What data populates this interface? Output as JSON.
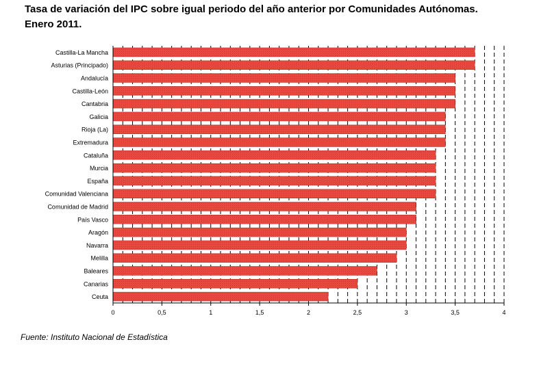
{
  "title": "Tasa de variación del IPC sobre igual periodo del año anterior por Comunidades Autónomas.",
  "subtitle": "Enero 2011.",
  "source": "Fuente: Instituto Nacional de Estadística",
  "colors": {
    "bar": "#e8483e",
    "bar_stroke": "#b02a22",
    "grid": "#000000"
  },
  "chart_data": {
    "type": "bar",
    "orientation": "horizontal",
    "categories": [
      "Castilla-La Mancha",
      "Asturias (Principado)",
      "Andalucía",
      "Castilla-León",
      "Cantabria",
      "Galicia",
      "Rioja (La)",
      "Extremadura",
      "Cataluña",
      "Murcia",
      "España",
      "Comunidad Valenciana",
      "Comunidad de Madrid",
      "País Vasco",
      "Aragón",
      "Navarra",
      "Melilla",
      "Baleares",
      "Canarias",
      "Ceuta"
    ],
    "values": [
      3.7,
      3.7,
      3.5,
      3.5,
      3.5,
      3.4,
      3.4,
      3.4,
      3.3,
      3.3,
      3.3,
      3.3,
      3.1,
      3.1,
      3.0,
      3.0,
      2.9,
      2.7,
      2.5,
      2.2
    ],
    "xlim": [
      0,
      4
    ],
    "ticks": [
      "0",
      "0,5",
      "1",
      "1,5",
      "2",
      "2,5",
      "3",
      "3,5",
      "4"
    ],
    "tick_values": [
      0,
      0.5,
      1,
      1.5,
      2,
      2.5,
      3,
      3.5,
      4
    ],
    "grid_values": [
      0.1,
      0.2,
      0.3,
      0.4,
      0.5,
      0.6,
      0.7,
      0.8,
      0.9,
      1,
      1.1,
      1.2,
      1.3,
      1.4,
      1.5,
      1.6,
      1.7,
      1.8,
      1.9,
      2,
      2.1,
      2.2,
      2.3,
      2.4,
      2.5,
      2.6,
      2.7,
      2.8,
      2.9,
      3,
      3.1,
      3.2,
      3.3,
      3.4,
      3.5,
      3.6,
      3.7,
      3.8,
      3.9,
      4
    ],
    "grid": true,
    "grid_style": "dashed",
    "legend": "none"
  }
}
